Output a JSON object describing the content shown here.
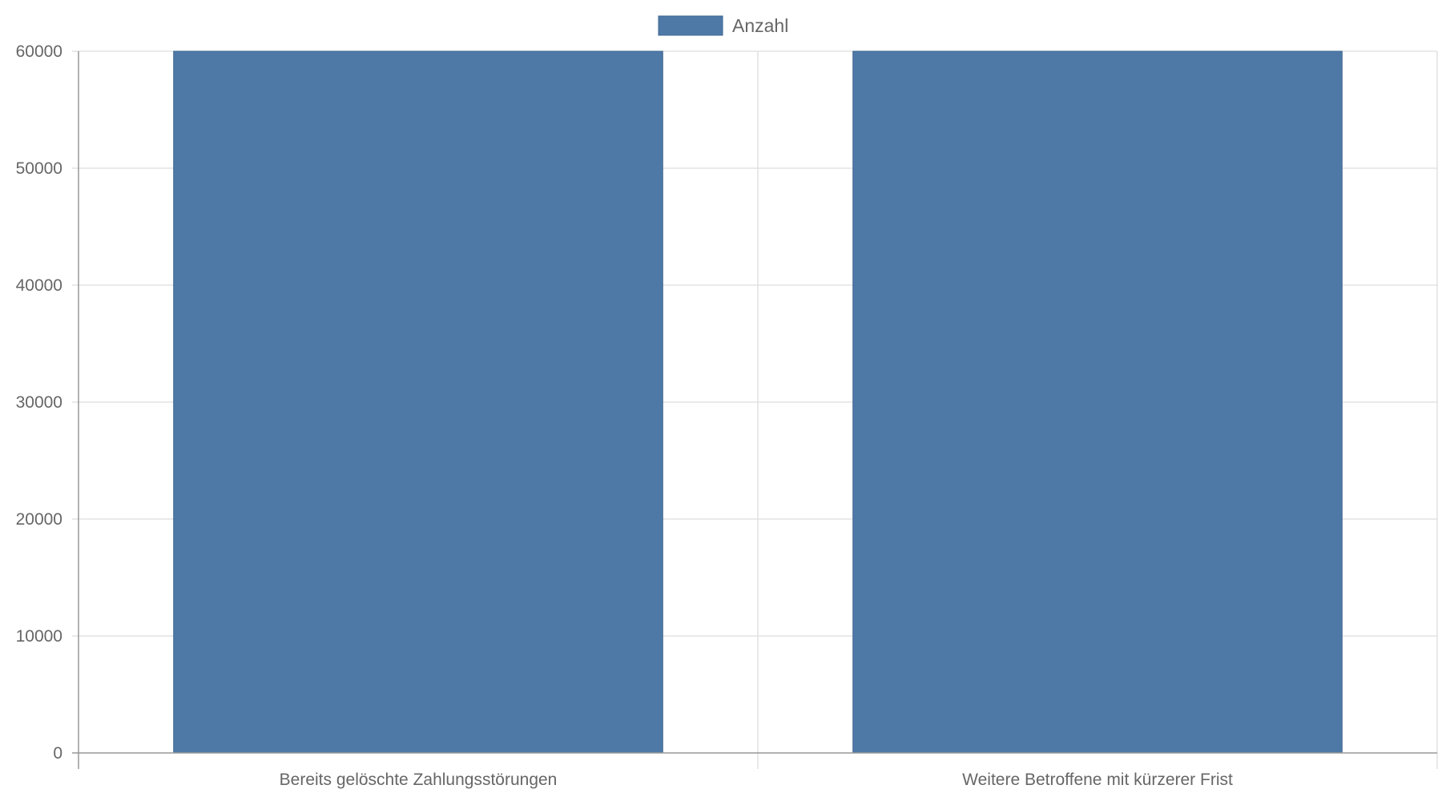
{
  "chart_data": {
    "type": "bar",
    "title": "",
    "xlabel": "",
    "ylabel": "",
    "categories": [
      "Bereits gelöschte Zahlungsstörungen",
      "Weitere Betroffene mit kürzerer Frist"
    ],
    "series": [
      {
        "name": "Anzahl",
        "color": "#4e79a7",
        "values": [
          60000,
          60000
        ]
      }
    ],
    "ylim": [
      0,
      60000
    ],
    "yticks": [
      "0",
      "10000",
      "20000",
      "30000",
      "40000",
      "50000",
      "60000"
    ],
    "grid": true,
    "legend_position": "top-center"
  }
}
